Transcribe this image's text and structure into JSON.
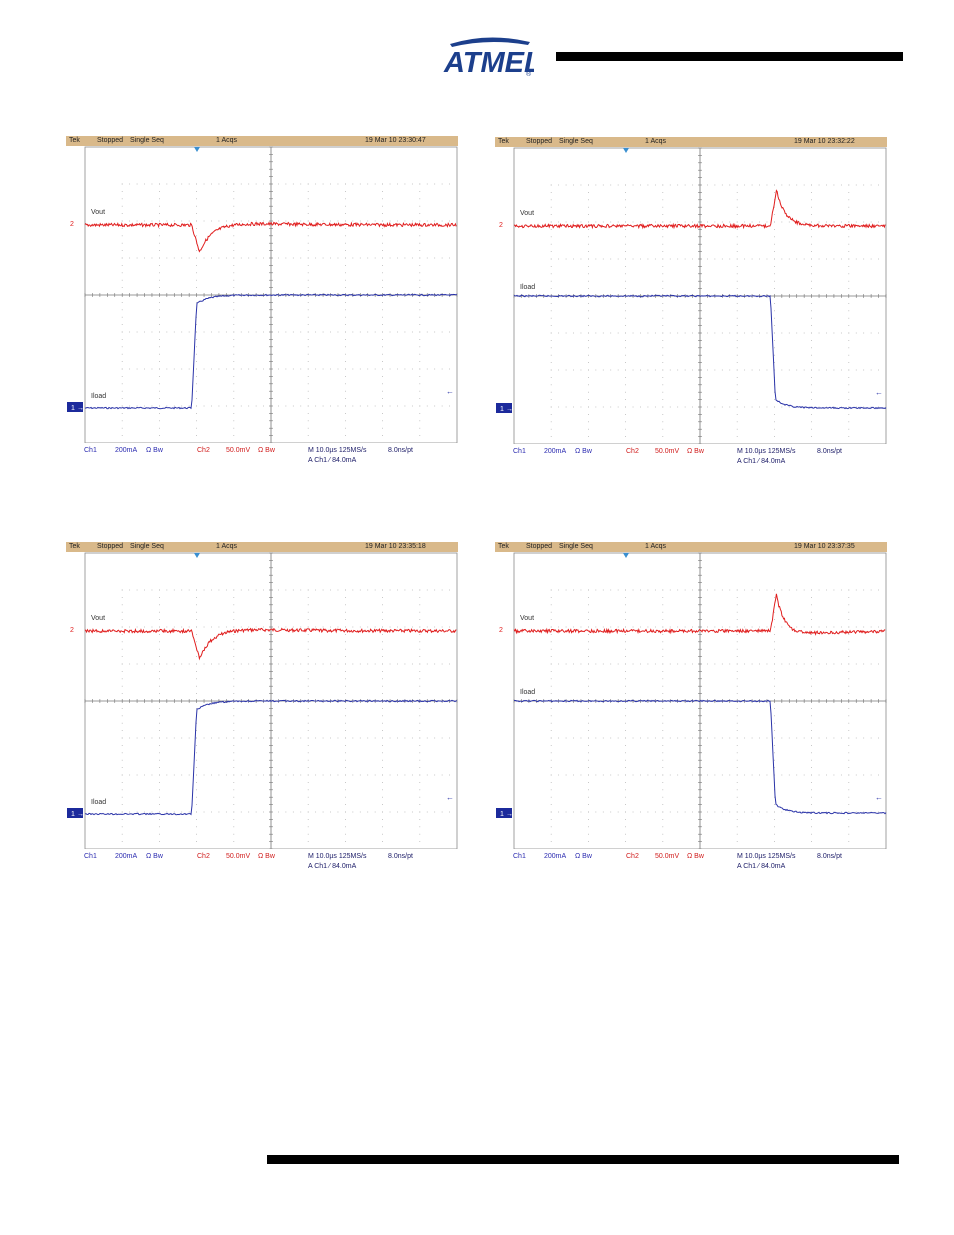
{
  "logo": {
    "text": "ATMEL",
    "registered": "®"
  },
  "panels": [
    {
      "id": "top-left",
      "status": {
        "brand": "Tek",
        "state": "Stopped",
        "mode": "Single Seq",
        "acqs": "1 Acqs",
        "datetime": "19 Mar 10 23:30:47"
      },
      "vout_label": "Vout",
      "iload_label": "Iload",
      "ch2_marker": "2",
      "ch1_marker": "1",
      "ch1_label": "Ch1",
      "ch1_scale": "200mA",
      "ch1_coupling": "Ω Bw",
      "ch2_label": "Ch2",
      "ch2_scale": "50.0mV",
      "ch2_coupling": "Ω Bw",
      "timebase": "M 10.0µs 125MS/s",
      "sample": "8.0ns/pt",
      "trigger": "A Ch1 ⁄ 84.0mA",
      "waveform": {
        "load_step": "rising",
        "vout_response": "undershoot"
      }
    },
    {
      "id": "top-right",
      "status": {
        "brand": "Tek",
        "state": "Stopped",
        "mode": "Single Seq",
        "acqs": "1 Acqs",
        "datetime": "19 Mar 10 23:32:22"
      },
      "vout_label": "Vout",
      "iload_label": "Iload",
      "ch2_marker": "2",
      "ch1_marker": "1",
      "ch1_label": "Ch1",
      "ch1_scale": "200mA",
      "ch1_coupling": "Ω Bw",
      "ch2_label": "Ch2",
      "ch2_scale": "50.0mV",
      "ch2_coupling": "Ω Bw",
      "timebase": "M 10.0µs 125MS/s",
      "sample": "8.0ns/pt",
      "trigger": "A Ch1 ⁄ 84.0mA",
      "waveform": {
        "load_step": "falling",
        "vout_response": "overshoot"
      }
    },
    {
      "id": "bottom-left",
      "status": {
        "brand": "Tek",
        "state": "Stopped",
        "mode": "Single Seq",
        "acqs": "1 Acqs",
        "datetime": "19 Mar 10 23:35:18"
      },
      "vout_label": "Vout",
      "iload_label": "Iload",
      "ch2_marker": "2",
      "ch1_marker": "1",
      "ch1_label": "Ch1",
      "ch1_scale": "200mA",
      "ch1_coupling": "Ω Bw",
      "ch2_label": "Ch2",
      "ch2_scale": "50.0mV",
      "ch2_coupling": "Ω Bw",
      "timebase": "M 10.0µs 125MS/s",
      "sample": "8.0ns/pt",
      "trigger": "A Ch1 ⁄ 84.0mA",
      "waveform": {
        "load_step": "rising",
        "vout_response": "undershoot"
      }
    },
    {
      "id": "bottom-right",
      "status": {
        "brand": "Tek",
        "state": "Stopped",
        "mode": "Single Seq",
        "acqs": "1 Acqs",
        "datetime": "19 Mar 10 23:37:35"
      },
      "vout_label": "Vout",
      "iload_label": "Iload",
      "ch2_marker": "2",
      "ch1_marker": "1",
      "ch1_label": "Ch1",
      "ch1_scale": "200mA",
      "ch1_coupling": "Ω Bw",
      "ch2_label": "Ch2",
      "ch2_scale": "50.0mV",
      "ch2_coupling": "Ω Bw",
      "timebase": "M 10.0µs 125MS/s",
      "sample": "8.0ns/pt",
      "trigger": "A Ch1 ⁄ 84.0mA",
      "waveform": {
        "load_step": "falling",
        "vout_response": "overshoot"
      }
    }
  ],
  "colors": {
    "ch1": "#2a33a8",
    "ch2": "#e01e1e",
    "status_bar": "#d9b98a",
    "grid": "#8a8a8a"
  }
}
